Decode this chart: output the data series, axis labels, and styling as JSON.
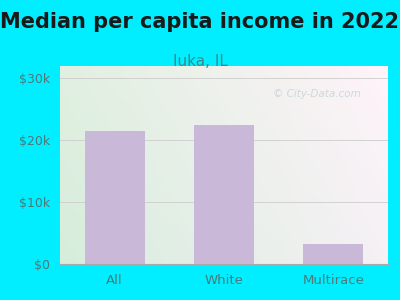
{
  "title": "Median per capita income in 2022",
  "subtitle": "Iuka, IL",
  "categories": [
    "All",
    "White",
    "Multirace"
  ],
  "values": [
    21500,
    22500,
    3200
  ],
  "bar_color": "#c9b8d8",
  "title_fontsize": 15,
  "subtitle_fontsize": 11,
  "title_color": "#1a1a1a",
  "subtitle_color": "#3a8a8a",
  "tick_label_color": "#4a7a7a",
  "ytick_labels": [
    "$0",
    "$10k",
    "$20k",
    "$30k"
  ],
  "ytick_values": [
    0,
    10000,
    20000,
    30000
  ],
  "ylim": [
    0,
    32000
  ],
  "bg_outer": "#00eeff",
  "watermark": "© City-Data.com",
  "watermark_color": "#b0c8d0",
  "watermark_alpha": 0.6
}
